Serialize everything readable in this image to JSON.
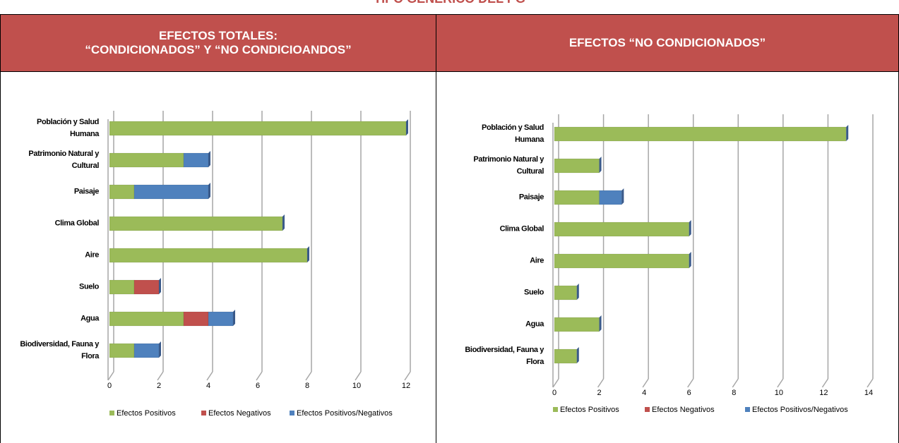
{
  "title": "TIPO GENÉRICO DEL PG",
  "columns": [
    [
      "EFECTOS TOTALES:",
      "“CONDICIONADOS” Y “NO CONDICIOANDOS”"
    ],
    [
      "EFECTOS “NO CONDICIONADOS”"
    ]
  ],
  "chart_data": [
    {
      "type": "bar",
      "orientation": "horizontal",
      "stacked": true,
      "categories": [
        "Población y Salud Humana",
        "Patrimonio Natural y Cultural",
        "Paisaje",
        "Clima Global",
        "Aire",
        "Suelo",
        "Agua",
        "Biodiversidad, Fauna y Flora"
      ],
      "series": [
        {
          "name": "Efectos Positivos",
          "color": "#9bbb59",
          "values": [
            12,
            3,
            1,
            7,
            8,
            1,
            3,
            1
          ]
        },
        {
          "name": "Efectos Negativos",
          "color": "#c0504d",
          "values": [
            0,
            0,
            0,
            0,
            0,
            1,
            1,
            0
          ]
        },
        {
          "name": "Efectos Positivos/Negativos",
          "color": "#4f81bd",
          "values": [
            0,
            1,
            3,
            0,
            0,
            0,
            1,
            1
          ]
        }
      ],
      "xlim": [
        0,
        12
      ],
      "xticks": [
        0,
        2,
        4,
        6,
        8,
        10,
        12
      ],
      "grid": true,
      "legend": "bottom"
    },
    {
      "type": "bar",
      "orientation": "horizontal",
      "stacked": true,
      "categories": [
        "Población y Salud Humana",
        "Patrimonio Natural y Cultural",
        "Paisaje",
        "Clima Global",
        "Aire",
        "Suelo",
        "Agua",
        "Biodiversidad, Fauna y Flora"
      ],
      "series": [
        {
          "name": "Efectos Positivos",
          "color": "#9bbb59",
          "values": [
            13,
            2,
            2,
            6,
            6,
            1,
            2,
            1
          ]
        },
        {
          "name": "Efectos Negativos",
          "color": "#c0504d",
          "values": [
            0,
            0,
            0,
            0,
            0,
            0,
            0,
            0
          ]
        },
        {
          "name": "Efectos Positivos/Negativos",
          "color": "#4f81bd",
          "values": [
            0,
            0,
            1,
            0,
            0,
            0,
            0,
            0
          ]
        }
      ],
      "xlim": [
        0,
        14
      ],
      "xticks": [
        0,
        2,
        4,
        6,
        8,
        10,
        12,
        14
      ],
      "grid": true,
      "legend": "bottom"
    }
  ]
}
